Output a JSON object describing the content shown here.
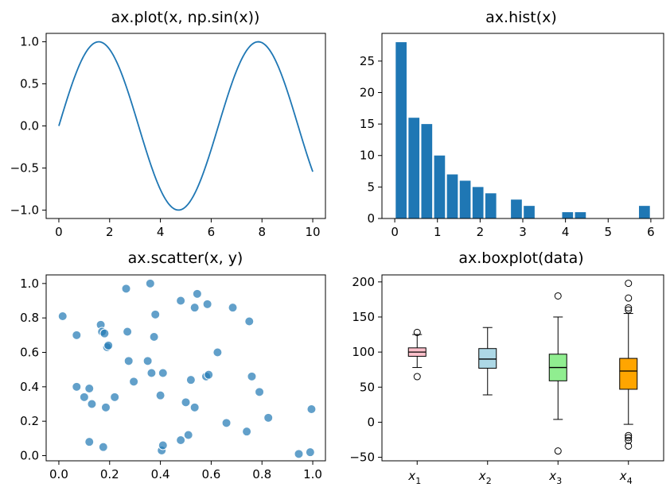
{
  "figure": {
    "background": "#ffffff",
    "default_color": "#1f77b4"
  },
  "chart_data": [
    {
      "type": "line",
      "title": "ax.plot(x, np.sin(x))",
      "xlabel": "",
      "ylabel": "",
      "function": "sin",
      "x_range": [
        0,
        10
      ],
      "sample_count": 201,
      "xlim": [
        -0.5,
        10.5
      ],
      "ylim": [
        -1.1,
        1.1
      ],
      "xticks": [
        0,
        2,
        4,
        6,
        8,
        10
      ],
      "xtick_labels": [
        "0",
        "2",
        "4",
        "6",
        "8",
        "10"
      ],
      "yticks": [
        1.0,
        0.5,
        0.0,
        -0.5,
        -1.0
      ],
      "ytick_labels": [
        "1.0",
        "0.5",
        "0.0",
        "−0.5",
        "−1.0"
      ],
      "grid": false,
      "series": [
        {
          "color": "#1f77b4"
        }
      ]
    },
    {
      "type": "bar",
      "title": "ax.hist(x)",
      "xlabel": "",
      "ylabel": "",
      "bin_edges": [
        0,
        0.3,
        0.6,
        0.9,
        1.2,
        1.5,
        1.8,
        2.1,
        2.4,
        2.7,
        3.0,
        3.3,
        3.6,
        3.9,
        4.2,
        4.5,
        4.8,
        5.1,
        5.4,
        5.7,
        6.0
      ],
      "values": [
        28,
        16,
        15,
        10,
        7,
        6,
        5,
        4,
        0,
        3,
        2,
        0,
        0,
        1,
        1,
        0,
        0,
        0,
        0,
        2
      ],
      "xlim": [
        -0.3,
        6.3
      ],
      "ylim": [
        0,
        29.4
      ],
      "xticks": [
        0,
        1,
        2,
        3,
        4,
        5,
        6
      ],
      "xtick_labels": [
        "0",
        "1",
        "2",
        "3",
        "4",
        "5",
        "6"
      ],
      "yticks": [
        0,
        5,
        10,
        15,
        20,
        25
      ],
      "ytick_labels": [
        "0",
        "5",
        "10",
        "15",
        "20",
        "25"
      ],
      "grid": false,
      "color": "#1f77b4"
    },
    {
      "type": "scatter",
      "title": "ax.scatter(x, y)",
      "xlabel": "",
      "ylabel": "",
      "xlim": [
        -0.05,
        1.05
      ],
      "ylim": [
        -0.03,
        1.05
      ],
      "xticks": [
        0.0,
        0.2,
        0.4,
        0.6,
        0.8,
        1.0
      ],
      "xtick_labels": [
        "0.0",
        "0.2",
        "0.4",
        "0.6",
        "0.8",
        "1.0"
      ],
      "yticks": [
        0.0,
        0.2,
        0.4,
        0.6,
        0.8,
        1.0
      ],
      "ytick_labels": [
        "0.0",
        "0.2",
        "0.4",
        "0.6",
        "0.8",
        "1.0"
      ],
      "grid": false,
      "color": "#1f77b4",
      "points": [
        [
          0.015,
          0.81
        ],
        [
          0.07,
          0.7
        ],
        [
          0.07,
          0.4
        ],
        [
          0.1,
          0.34
        ],
        [
          0.12,
          0.39
        ],
        [
          0.12,
          0.08
        ],
        [
          0.13,
          0.3
        ],
        [
          0.165,
          0.76
        ],
        [
          0.17,
          0.72
        ],
        [
          0.175,
          0.05
        ],
        [
          0.18,
          0.71
        ],
        [
          0.185,
          0.28
        ],
        [
          0.19,
          0.63
        ],
        [
          0.195,
          0.64
        ],
        [
          0.22,
          0.34
        ],
        [
          0.265,
          0.97
        ],
        [
          0.27,
          0.72
        ],
        [
          0.275,
          0.55
        ],
        [
          0.295,
          0.43
        ],
        [
          0.35,
          0.55
        ],
        [
          0.36,
          1.0
        ],
        [
          0.365,
          0.48
        ],
        [
          0.375,
          0.69
        ],
        [
          0.38,
          0.82
        ],
        [
          0.4,
          0.35
        ],
        [
          0.405,
          0.03
        ],
        [
          0.41,
          0.06
        ],
        [
          0.41,
          0.48
        ],
        [
          0.48,
          0.9
        ],
        [
          0.48,
          0.09
        ],
        [
          0.5,
          0.31
        ],
        [
          0.51,
          0.12
        ],
        [
          0.52,
          0.44
        ],
        [
          0.535,
          0.86
        ],
        [
          0.535,
          0.28
        ],
        [
          0.545,
          0.94
        ],
        [
          0.58,
          0.46
        ],
        [
          0.585,
          0.88
        ],
        [
          0.59,
          0.47
        ],
        [
          0.625,
          0.6
        ],
        [
          0.66,
          0.19
        ],
        [
          0.685,
          0.86
        ],
        [
          0.74,
          0.14
        ],
        [
          0.75,
          0.78
        ],
        [
          0.76,
          0.46
        ],
        [
          0.79,
          0.37
        ],
        [
          0.825,
          0.22
        ],
        [
          0.945,
          0.01
        ],
        [
          0.99,
          0.02
        ],
        [
          0.995,
          0.27
        ]
      ]
    },
    {
      "type": "boxplot",
      "title": "ax.boxplot(data)",
      "xlabel": "",
      "ylabel": "",
      "xlim": [
        0.5,
        4.5
      ],
      "ylim": [
        -55,
        210
      ],
      "yticks": [
        -50,
        0,
        50,
        100,
        150,
        200
      ],
      "ytick_labels": [
        "−50",
        "0",
        "50",
        "100",
        "150",
        "200"
      ],
      "grid": false,
      "boxes": [
        {
          "label": "x",
          "sub": "1",
          "q1": 94,
          "median": 100,
          "q3": 106,
          "whisker_low": 78,
          "whisker_high": 125,
          "fliers": [
            128,
            65
          ],
          "fill": "#ffc0cb"
        },
        {
          "label": "x",
          "sub": "2",
          "q1": 77,
          "median": 90,
          "q3": 105,
          "whisker_low": 39,
          "whisker_high": 135,
          "fliers": [],
          "fill": "#add8e6"
        },
        {
          "label": "x",
          "sub": "3",
          "q1": 59,
          "median": 78,
          "q3": 97,
          "whisker_low": 4,
          "whisker_high": 150,
          "fliers": [
            180,
            -41
          ],
          "fill": "#90ee90"
        },
        {
          "label": "x",
          "sub": "4",
          "q1": 47,
          "median": 73,
          "q3": 91,
          "whisker_low": -3,
          "whisker_high": 155,
          "fliers": [
            198,
            177,
            163,
            160,
            -19,
            -22,
            -26,
            -34
          ],
          "fill": "#ffa500"
        }
      ]
    }
  ]
}
